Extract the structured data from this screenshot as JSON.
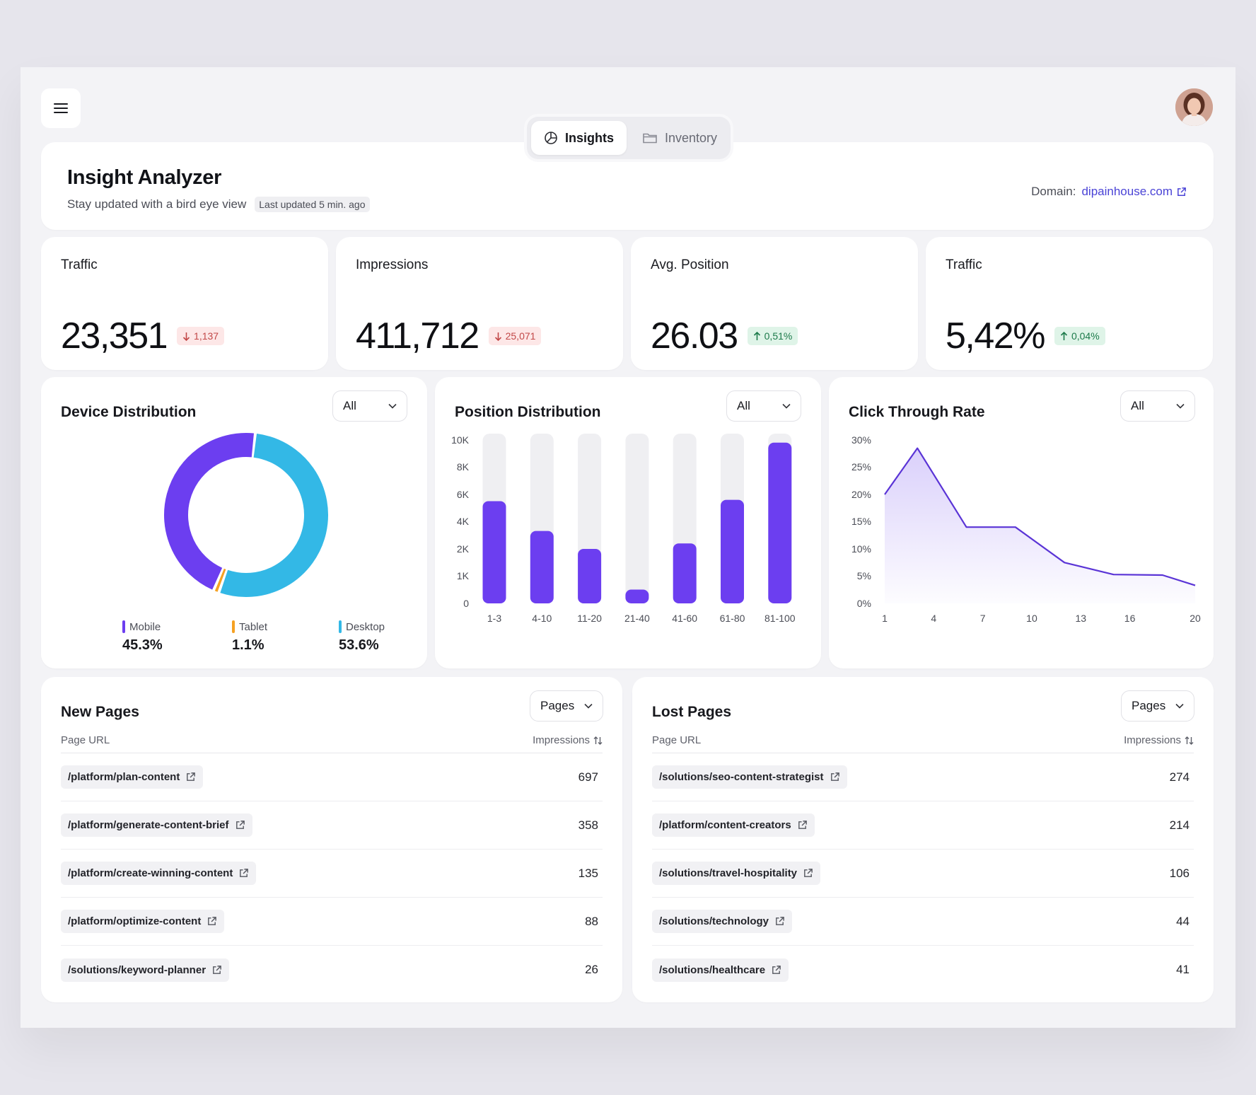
{
  "tabs": [
    {
      "label": "Insights",
      "icon": "pie-icon",
      "active": true
    },
    {
      "label": "Inventory",
      "icon": "folder-icon",
      "active": false
    }
  ],
  "header": {
    "title": "Insight Analyzer",
    "subtitle": "Stay updated with a bird eye view",
    "last_updated": "Last updated 5 min. ago",
    "domain_label": "Domain:",
    "domain_value": "dipainhouse.com"
  },
  "kpis": [
    {
      "label": "Traffic",
      "value": "23,351",
      "delta": "1,137",
      "direction": "down"
    },
    {
      "label": "Impressions",
      "value": "411,712",
      "delta": "25,071",
      "direction": "down"
    },
    {
      "label": "Avg. Position",
      "value": "26.03",
      "delta": "0,51%",
      "direction": "up"
    },
    {
      "label": "Traffic",
      "value": "5,42%",
      "delta": "0,04%",
      "direction": "up"
    }
  ],
  "device": {
    "title": "Device Distribution",
    "filter": "All",
    "legend": [
      {
        "label": "Mobile",
        "value": "45.3%",
        "color": "#6c3ef0"
      },
      {
        "label": "Tablet",
        "value": "1.1%",
        "color": "#f5a122"
      },
      {
        "label": "Desktop",
        "value": "53.6%",
        "color": "#33b8e6"
      }
    ]
  },
  "position": {
    "title": "Position Distribution",
    "filter": "All"
  },
  "ctr": {
    "title": "Click Through Rate",
    "filter": "All"
  },
  "chart_data": [
    {
      "type": "pie",
      "title": "Device Distribution",
      "categories": [
        "Mobile",
        "Tablet",
        "Desktop"
      ],
      "values": [
        45.3,
        1.1,
        53.6
      ]
    },
    {
      "type": "bar",
      "title": "Position Distribution",
      "categories": [
        "1-3",
        "4-10",
        "11-20",
        "21-40",
        "41-60",
        "61-80",
        "81-100"
      ],
      "y_ticks": [
        "10K",
        "8K",
        "6K",
        "4K",
        "2K",
        "1K",
        "0"
      ],
      "values": [
        5500,
        3300,
        2000,
        500,
        2400,
        5600,
        9800
      ],
      "ylim": [
        0,
        10000
      ]
    },
    {
      "type": "area",
      "title": "Click Through Rate",
      "x_ticks": [
        "1",
        "4",
        "7",
        "10",
        "13",
        "16",
        "20"
      ],
      "y_ticks": [
        "30%",
        "25%",
        "20%",
        "15%",
        "10%",
        "5%",
        "0%"
      ],
      "x": [
        1,
        3,
        6,
        9,
        12,
        15,
        18,
        20
      ],
      "values": [
        20,
        28.5,
        14,
        14,
        7.5,
        5.3,
        5.2,
        3.3
      ],
      "xlim": [
        1,
        20
      ],
      "ylim": [
        0,
        30
      ]
    }
  ],
  "new_pages": {
    "title": "New Pages",
    "filter": "Pages",
    "col_url": "Page URL",
    "col_impr": "Impressions",
    "rows": [
      {
        "url": "/platform/plan-content",
        "impressions": "697"
      },
      {
        "url": "/platform/generate-content-brief",
        "impressions": "358"
      },
      {
        "url": "/platform/create-winning-content",
        "impressions": "135"
      },
      {
        "url": "/platform/optimize-content",
        "impressions": "88"
      },
      {
        "url": "/solutions/keyword-planner",
        "impressions": "26"
      }
    ]
  },
  "lost_pages": {
    "title": "Lost Pages",
    "filter": "Pages",
    "col_url": "Page URL",
    "col_impr": "Impressions",
    "rows": [
      {
        "url": "/solutions/seo-content-strategist",
        "impressions": "274"
      },
      {
        "url": "/platform/content-creators",
        "impressions": "214"
      },
      {
        "url": "/solutions/travel-hospitality",
        "impressions": "106"
      },
      {
        "url": "/solutions/technology",
        "impressions": "44"
      },
      {
        "url": "/solutions/healthcare",
        "impressions": "41"
      }
    ]
  }
}
